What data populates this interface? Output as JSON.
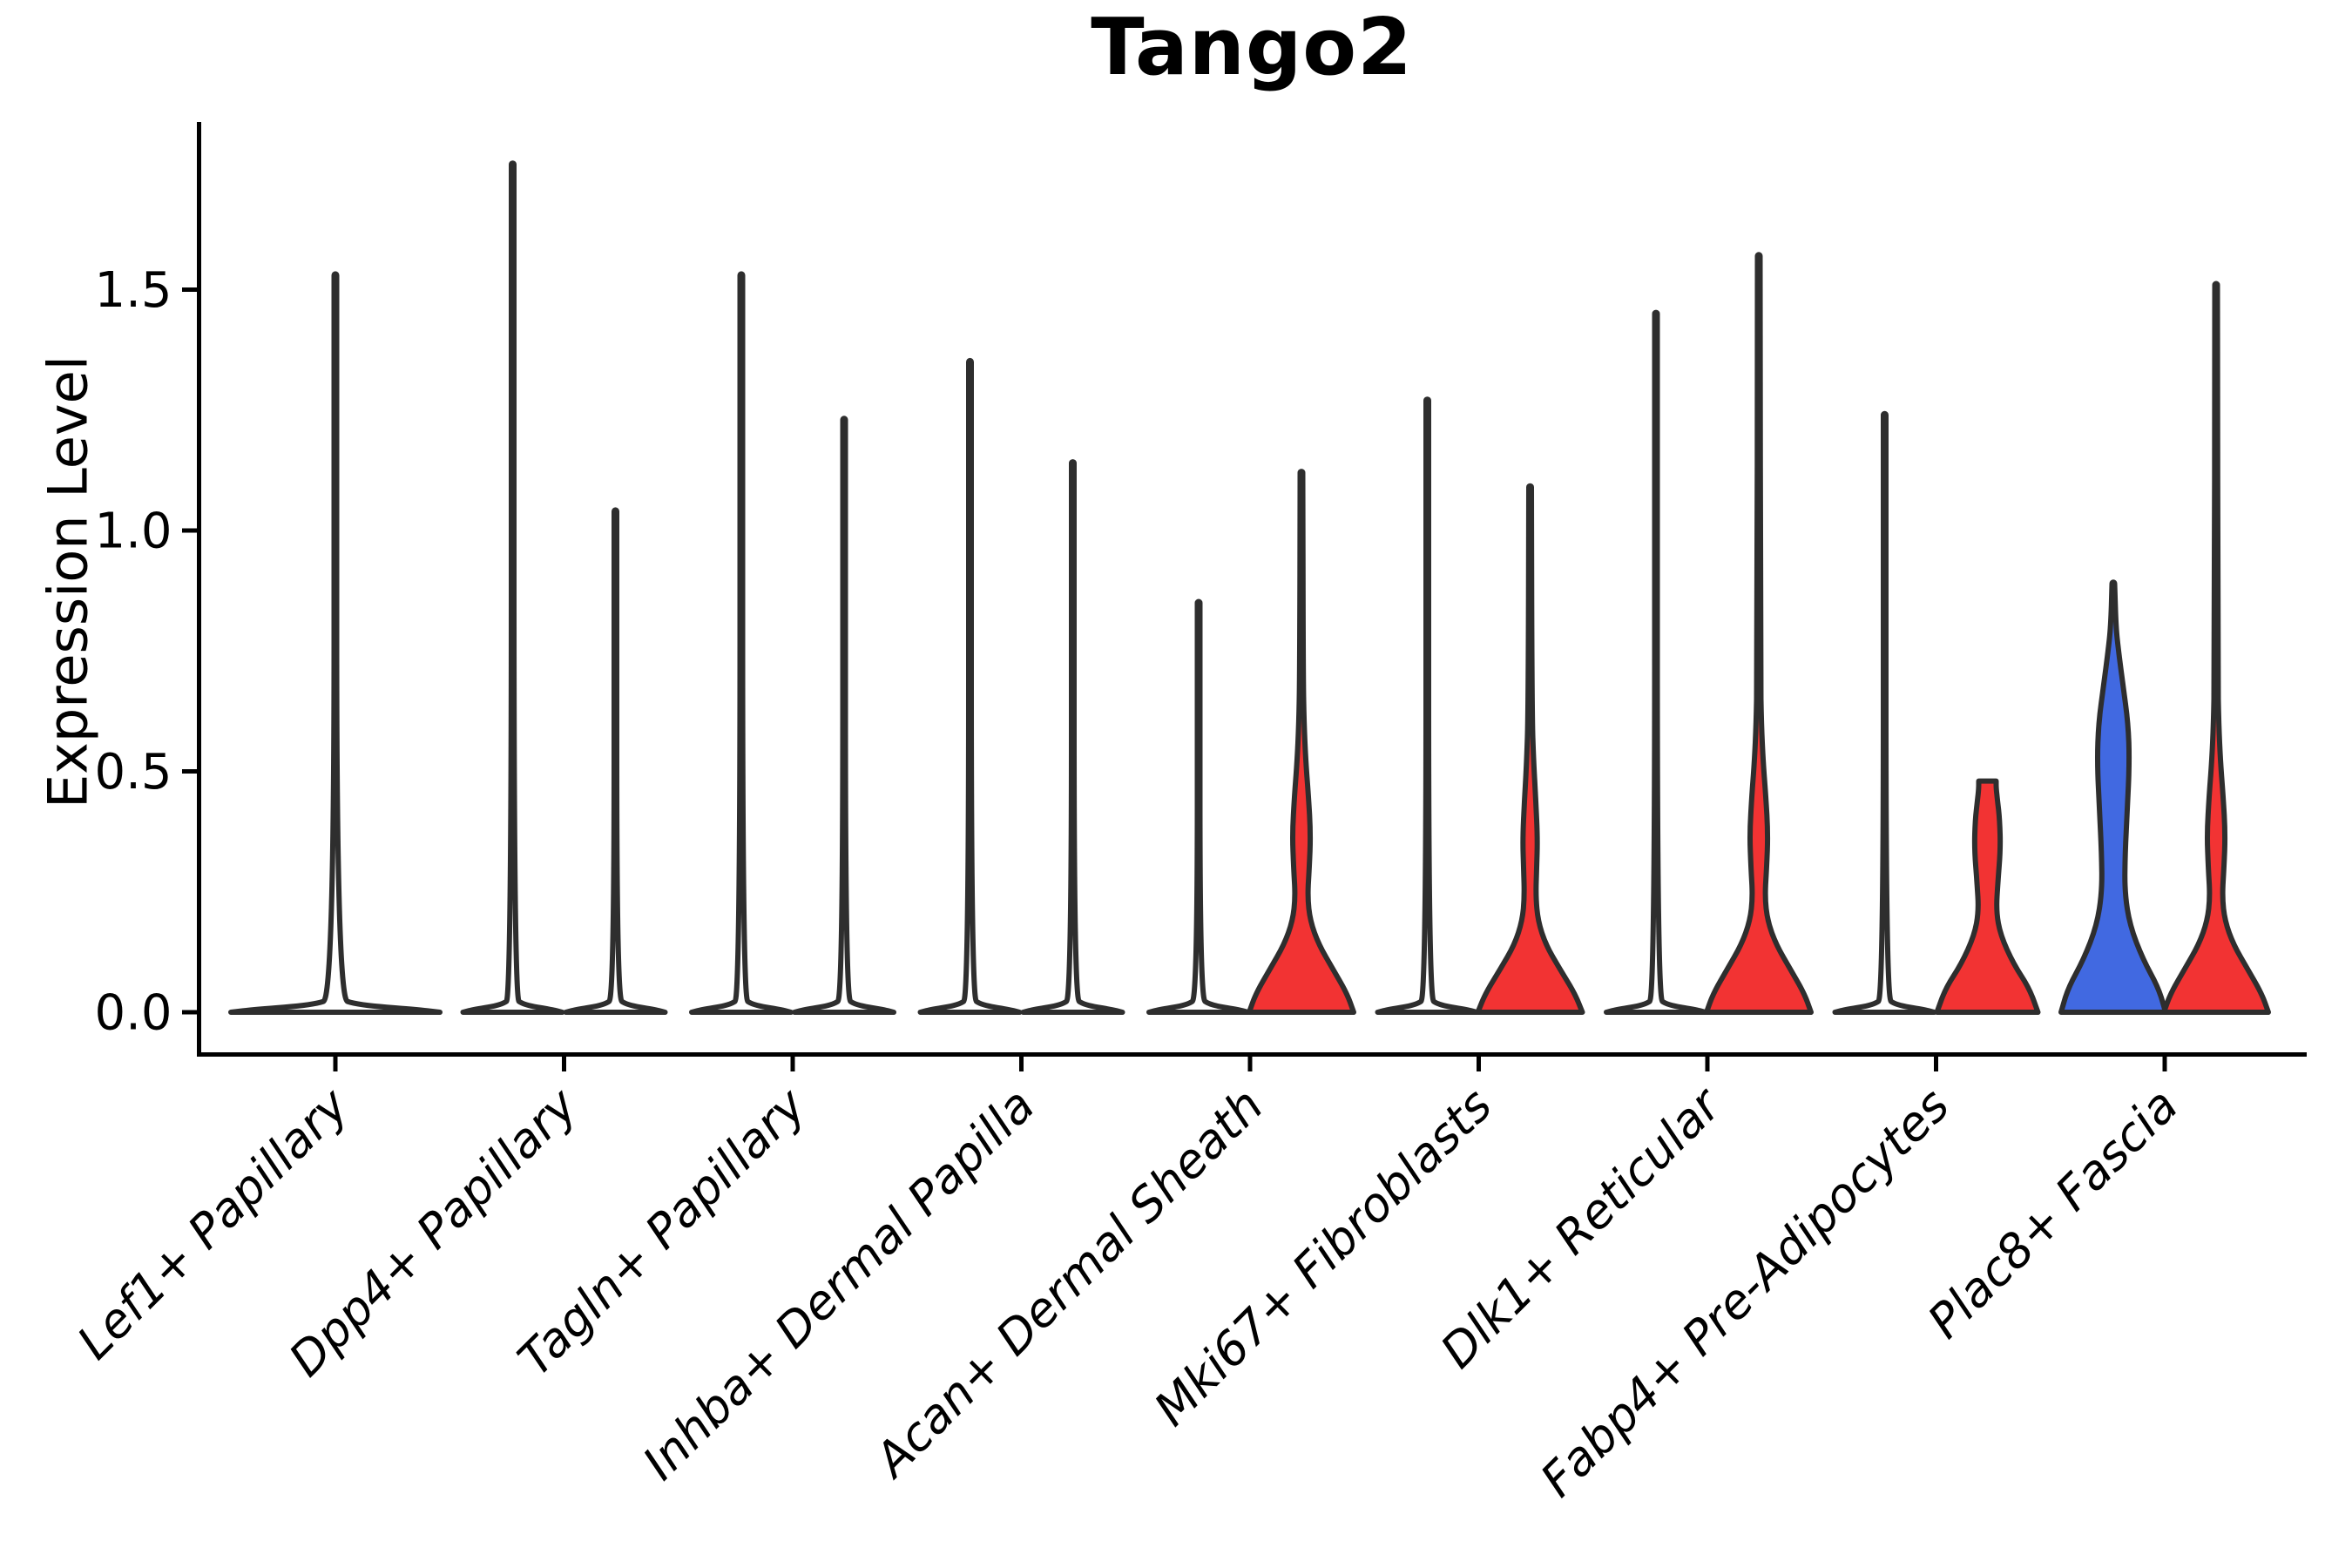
{
  "title": "Tango2",
  "y_axis": {
    "label": "Expression Level",
    "tick_labels": [
      "0.0",
      "0.5",
      "1.0",
      "1.5"
    ],
    "tick_values": [
      0,
      0.5,
      1.0,
      1.5
    ]
  },
  "x_axis": {
    "categories": [
      "Lef1+ Papillary",
      "Dpp4+ Papillary",
      "Tagln+ Papillary",
      "Inhba+ Dermal Papilla",
      "Acan+ Dermal Sheath",
      "Mki67+ Fibroblasts",
      "Dlk1+ Reticular",
      "Fabp4+ Pre-Adipocytes",
      "Plac8+ Fascia"
    ]
  },
  "colors": {
    "red": "#F23333",
    "blue": "#4169E1",
    "outline": "#2E2E2E",
    "text": "#000000"
  },
  "chart_data": {
    "type": "violin",
    "title": "Tango2",
    "xlabel": "",
    "ylabel": "Expression Level",
    "ylim": [
      -0.09,
      1.86
    ],
    "yticks": [
      0,
      0.5,
      1.0,
      1.5
    ],
    "grid": false,
    "legend": "none",
    "categories": [
      "Lef1+ Papillary",
      "Dpp4+ Papillary",
      "Tagln+ Papillary",
      "Inhba+ Dermal Papilla",
      "Acan+ Dermal Sheath",
      "Mki67+ Fibroblasts",
      "Dlk1+ Reticular",
      "Fabp4+ Pre-Adipocytes",
      "Plac8+ Fascia"
    ],
    "violins": [
      {
        "category": "Lef1+ Papillary",
        "side": "full",
        "fill": "none",
        "max": 1.53,
        "profile": "spike_full"
      },
      {
        "category": "Dpp4+ Papillary",
        "side": "left",
        "fill": "none",
        "max": 1.76,
        "profile": "spike"
      },
      {
        "category": "Dpp4+ Papillary",
        "side": "right",
        "fill": "none",
        "max": 1.04,
        "profile": "spike"
      },
      {
        "category": "Tagln+ Papillary",
        "side": "left",
        "fill": "none",
        "max": 1.53,
        "profile": "spike"
      },
      {
        "category": "Tagln+ Papillary",
        "side": "right",
        "fill": "none",
        "max": 1.23,
        "profile": "spike"
      },
      {
        "category": "Inhba+ Dermal Papilla",
        "side": "left",
        "fill": "none",
        "max": 1.35,
        "profile": "spike"
      },
      {
        "category": "Inhba+ Dermal Papilla",
        "side": "right",
        "fill": "none",
        "max": 1.14,
        "profile": "spike"
      },
      {
        "category": "Acan+ Dermal Sheath",
        "side": "left",
        "fill": "none",
        "max": 0.85,
        "profile": "spike"
      },
      {
        "category": "Acan+ Dermal Sheath",
        "side": "right",
        "fill": "red",
        "max": 1.12,
        "profile": "red_bulge"
      },
      {
        "category": "Mki67+ Fibroblasts",
        "side": "left",
        "fill": "none",
        "max": 1.27,
        "profile": "spike"
      },
      {
        "category": "Mki67+ Fibroblasts",
        "side": "right",
        "fill": "red",
        "max": 1.09,
        "profile": "red_bulge_small"
      },
      {
        "category": "Dlk1+ Reticular",
        "side": "left",
        "fill": "none",
        "max": 1.45,
        "profile": "spike"
      },
      {
        "category": "Dlk1+ Reticular",
        "side": "right",
        "fill": "red",
        "max": 1.57,
        "profile": "red_bulge"
      },
      {
        "category": "Fabp4+ Pre-Adipocytes",
        "side": "left",
        "fill": "none",
        "max": 1.24,
        "profile": "spike"
      },
      {
        "category": "Fabp4+ Pre-Adipocytes",
        "side": "right",
        "fill": "red",
        "max": 0.48,
        "profile": "column",
        "flat_top": true
      },
      {
        "category": "Plac8+ Fascia",
        "side": "left",
        "fill": "blue",
        "max": 0.89,
        "profile": "blue_bulge"
      },
      {
        "category": "Plac8+ Fascia",
        "side": "right",
        "fill": "red",
        "max": 1.51,
        "profile": "red_bulge"
      }
    ],
    "profiles": {
      "spike_full": [
        [
          0,
          120
        ],
        [
          0.006,
          92
        ],
        [
          0.015,
          26
        ],
        [
          0.03,
          1.5
        ]
      ],
      "spike": [
        [
          0,
          57
        ],
        [
          0.006,
          44
        ],
        [
          0.015,
          13
        ],
        [
          0.03,
          1.5
        ]
      ],
      "red_bulge": [
        [
          0,
          60
        ],
        [
          0.04,
          52
        ],
        [
          0.09,
          36
        ],
        [
          0.14,
          20
        ],
        [
          0.19,
          10
        ],
        [
          0.24,
          7
        ],
        [
          0.3,
          9
        ],
        [
          0.37,
          10.5
        ],
        [
          0.45,
          8
        ],
        [
          0.52,
          5
        ],
        [
          0.6,
          3
        ],
        [
          0.7,
          2.0
        ]
      ],
      "red_bulge_small": [
        [
          0,
          60
        ],
        [
          0.04,
          51
        ],
        [
          0.09,
          34
        ],
        [
          0.14,
          18
        ],
        [
          0.19,
          9
        ],
        [
          0.24,
          6.5
        ],
        [
          0.3,
          7.5
        ],
        [
          0.36,
          8.5
        ],
        [
          0.44,
          6.5
        ],
        [
          0.52,
          4
        ],
        [
          0.62,
          2.2
        ]
      ],
      "blue_bulge": [
        [
          0,
          60
        ],
        [
          0.05,
          52
        ],
        [
          0.11,
          34
        ],
        [
          0.18,
          19
        ],
        [
          0.25,
          13
        ],
        [
          0.33,
          13.5
        ],
        [
          0.42,
          16
        ],
        [
          0.52,
          18.5
        ],
        [
          0.6,
          17
        ],
        [
          0.68,
          11
        ],
        [
          0.75,
          6
        ],
        [
          0.8,
          3.0
        ]
      ],
      "column": [
        [
          0,
          58
        ],
        [
          0.05,
          48
        ],
        [
          0.1,
          30
        ],
        [
          0.16,
          15
        ],
        [
          0.21,
          10
        ],
        [
          0.27,
          12
        ],
        [
          0.34,
          15
        ],
        [
          0.4,
          14
        ],
        [
          0.44,
          11.5
        ],
        [
          0.465,
          10
        ]
      ]
    }
  }
}
